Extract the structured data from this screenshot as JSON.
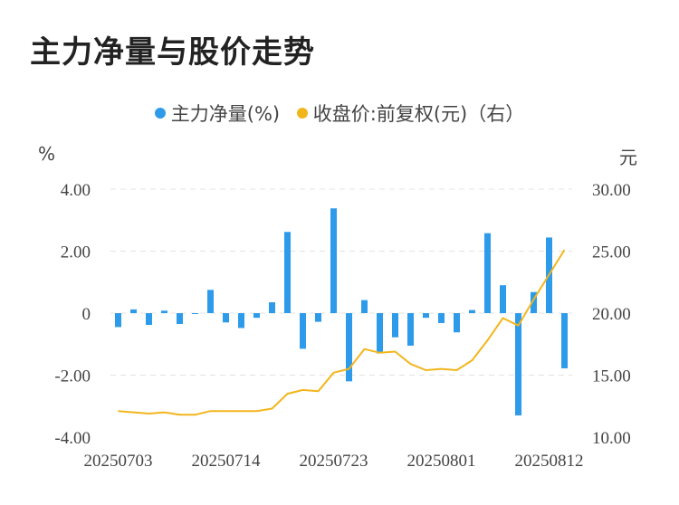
{
  "title": "主力净量与股价走势",
  "legend": [
    {
      "label": "主力净量(%)",
      "color": "#2D9BEA"
    },
    {
      "label": "收盘价:前复权(元)（右）",
      "color": "#F2B61D"
    }
  ],
  "units": {
    "left": "%",
    "right": "元"
  },
  "chart_data": {
    "type": "bar",
    "title": "主力净量与股价走势",
    "x": [
      "20250703",
      "20250704",
      "20250707",
      "20250708",
      "20250709",
      "20250710",
      "20250711",
      "20250714",
      "20250715",
      "20250716",
      "20250717",
      "20250718",
      "20250721",
      "20250722",
      "20250723",
      "20250724",
      "20250725",
      "20250728",
      "20250729",
      "20250730",
      "20250731",
      "20250801",
      "20250804",
      "20250805",
      "20250806",
      "20250807",
      "20250808",
      "20250811",
      "20250812",
      "20250813"
    ],
    "x_tick_labels": [
      "20250703",
      "20250714",
      "20250723",
      "20250801",
      "20250812"
    ],
    "x_tick_indices": [
      0,
      7,
      14,
      21,
      28
    ],
    "y_left": {
      "ticks": [
        "4.00",
        "2.00",
        "0",
        "-2.00",
        "-4.00"
      ],
      "ylim": [
        -4,
        4
      ]
    },
    "y_right": {
      "ticks": [
        "30.00",
        "25.00",
        "20.00",
        "15.00",
        "10.00"
      ],
      "ylim": [
        10,
        30
      ]
    },
    "grid": true,
    "legend_position": "top",
    "series": [
      {
        "name": "主力净量(%)",
        "type": "bar",
        "axis": "left",
        "color": "#2D9BEA",
        "values": [
          -0.45,
          0.12,
          -0.38,
          0.08,
          -0.35,
          -0.03,
          0.75,
          -0.3,
          -0.48,
          -0.15,
          0.35,
          2.62,
          -1.15,
          -0.28,
          3.38,
          -2.2,
          0.42,
          -1.3,
          -0.78,
          -1.05,
          -0.15,
          -0.32,
          -0.62,
          0.1,
          2.58,
          0.9,
          -3.3,
          0.68,
          2.44,
          -1.78
        ]
      },
      {
        "name": "收盘价:前复权(元)（右）",
        "type": "line",
        "axis": "right",
        "color": "#F2B61D",
        "values": [
          12.1,
          12.0,
          11.9,
          12.0,
          11.8,
          11.8,
          12.1,
          12.1,
          12.1,
          12.1,
          12.3,
          13.5,
          13.8,
          13.7,
          15.2,
          15.5,
          17.1,
          16.8,
          16.9,
          15.9,
          15.4,
          15.5,
          15.4,
          16.2,
          17.8,
          19.6,
          19.0,
          21.1,
          23.1,
          25.1
        ]
      }
    ]
  }
}
